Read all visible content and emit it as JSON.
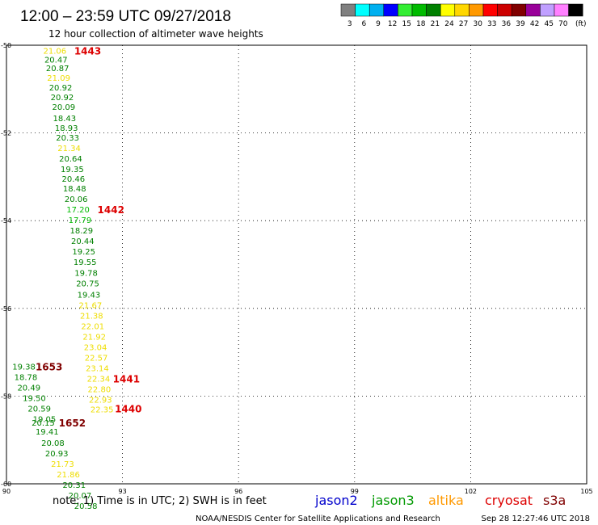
{
  "header": {
    "title": "12:00 – 23:59 UTC 09/27/2018",
    "subtitle": "12 hour collection of altimeter wave heights"
  },
  "colorbar": {
    "bins": [
      {
        "label": "3",
        "color": "#808080"
      },
      {
        "label": "6",
        "color": "#00ffff"
      },
      {
        "label": "9",
        "color": "#00b0f0"
      },
      {
        "label": "12",
        "color": "#0000ff"
      },
      {
        "label": "15",
        "color": "#33ee33"
      },
      {
        "label": "18",
        "color": "#00bb00"
      },
      {
        "label": "21",
        "color": "#008000"
      },
      {
        "label": "24",
        "color": "#ffff00"
      },
      {
        "label": "27",
        "color": "#ffd700"
      },
      {
        "label": "30",
        "color": "#ff9900"
      },
      {
        "label": "33",
        "color": "#ff0000"
      },
      {
        "label": "36",
        "color": "#cc0000"
      },
      {
        "label": "39",
        "color": "#800000"
      },
      {
        "label": "42",
        "color": "#990099"
      },
      {
        "label": "45",
        "color": "#c0a0ff"
      },
      {
        "label": "70",
        "color": "#ff80ff"
      },
      {
        "label": "",
        "color": "#000000"
      }
    ],
    "unit": "(ft)"
  },
  "chart_data": {
    "type": "scatter",
    "xlim": [
      90,
      105
    ],
    "ylim": [
      -60,
      -50
    ],
    "xticks": [
      "90",
      "93",
      "96",
      "99",
      "102",
      "105"
    ],
    "yticks": [
      "-50",
      "-52",
      "-54",
      "-56",
      "-58",
      "-60"
    ],
    "grid": true,
    "color_scale": {
      "thresholds": [
        3,
        6,
        9,
        12,
        15,
        18,
        21,
        24,
        27,
        30,
        33,
        36,
        39,
        42,
        45,
        70
      ]
    },
    "points": [
      {
        "x": 91.25,
        "y": -50.12,
        "v": 21.06
      },
      {
        "x": 91.28,
        "y": -50.32,
        "v": 20.47
      },
      {
        "x": 91.32,
        "y": -50.52,
        "v": 20.87
      },
      {
        "x": 91.35,
        "y": -50.74,
        "v": 21.09
      },
      {
        "x": 91.4,
        "y": -50.96,
        "v": 20.92
      },
      {
        "x": 91.44,
        "y": -51.18,
        "v": 20.92
      },
      {
        "x": 91.48,
        "y": -51.4,
        "v": 20.09
      },
      {
        "x": 91.5,
        "y": -51.66,
        "v": 18.43
      },
      {
        "x": 91.55,
        "y": -51.88,
        "v": 18.93
      },
      {
        "x": 91.58,
        "y": -52.1,
        "v": 20.33
      },
      {
        "x": 91.62,
        "y": -52.34,
        "v": 21.34
      },
      {
        "x": 91.66,
        "y": -52.58,
        "v": 20.64
      },
      {
        "x": 91.7,
        "y": -52.82,
        "v": 19.35
      },
      {
        "x": 91.73,
        "y": -53.04,
        "v": 20.46
      },
      {
        "x": 91.76,
        "y": -53.26,
        "v": 18.48
      },
      {
        "x": 91.8,
        "y": -53.5,
        "v": 20.06
      },
      {
        "x": 91.85,
        "y": -53.74,
        "v": 17.2
      },
      {
        "x": 91.9,
        "y": -53.98,
        "v": 17.79
      },
      {
        "x": 91.94,
        "y": -54.22,
        "v": 18.29
      },
      {
        "x": 91.97,
        "y": -54.46,
        "v": 20.44
      },
      {
        "x": 92.0,
        "y": -54.7,
        "v": 19.25
      },
      {
        "x": 92.03,
        "y": -54.94,
        "v": 19.55
      },
      {
        "x": 92.06,
        "y": -55.18,
        "v": 19.78
      },
      {
        "x": 92.1,
        "y": -55.42,
        "v": 20.75
      },
      {
        "x": 92.13,
        "y": -55.68,
        "v": 19.43
      },
      {
        "x": 92.17,
        "y": -55.92,
        "v": 21.67
      },
      {
        "x": 92.2,
        "y": -56.16,
        "v": 21.38
      },
      {
        "x": 92.23,
        "y": -56.4,
        "v": 22.01
      },
      {
        "x": 92.27,
        "y": -56.64,
        "v": 21.92
      },
      {
        "x": 92.3,
        "y": -56.88,
        "v": 23.04
      },
      {
        "x": 92.32,
        "y": -57.12,
        "v": 22.57
      },
      {
        "x": 92.35,
        "y": -57.36,
        "v": 23.14
      },
      {
        "x": 92.38,
        "y": -57.6,
        "v": 22.34
      },
      {
        "x": 92.4,
        "y": -57.84,
        "v": 22.8
      },
      {
        "x": 92.43,
        "y": -58.08,
        "v": 22.93
      },
      {
        "x": 92.47,
        "y": -58.3,
        "v": 22.35
      },
      {
        "x": 90.45,
        "y": -57.32,
        "v": 19.38
      },
      {
        "x": 90.5,
        "y": -57.56,
        "v": 18.78
      },
      {
        "x": 90.58,
        "y": -57.8,
        "v": 20.49
      },
      {
        "x": 90.72,
        "y": -58.04,
        "v": 19.5
      },
      {
        "x": 90.85,
        "y": -58.28,
        "v": 20.59
      },
      {
        "x": 90.98,
        "y": -58.52,
        "v": 19.05
      },
      {
        "x": 90.95,
        "y": -58.6,
        "v": 20.15
      },
      {
        "x": 91.05,
        "y": -58.8,
        "v": 19.41
      },
      {
        "x": 91.2,
        "y": -59.06,
        "v": 20.08
      },
      {
        "x": 91.3,
        "y": -59.3,
        "v": 20.93
      },
      {
        "x": 91.45,
        "y": -59.54,
        "v": 21.73
      },
      {
        "x": 91.6,
        "y": -59.78,
        "v": 21.86
      },
      {
        "x": 91.75,
        "y": -60.02,
        "v": 20.31
      },
      {
        "x": 91.9,
        "y": -60.26,
        "v": 20.07
      },
      {
        "x": 92.05,
        "y": -60.5,
        "v": 20.58
      }
    ],
    "pass_labels": [
      {
        "x": 92.1,
        "y": -50.12,
        "text": "1443",
        "color": "#dd0000"
      },
      {
        "x": 92.7,
        "y": -53.74,
        "text": "1442",
        "color": "#dd0000"
      },
      {
        "x": 93.1,
        "y": -57.6,
        "text": "1441",
        "color": "#dd0000"
      },
      {
        "x": 93.15,
        "y": -58.28,
        "text": "1440",
        "color": "#dd0000"
      },
      {
        "x": 91.1,
        "y": -57.32,
        "text": "1653",
        "color": "#800000"
      },
      {
        "x": 91.7,
        "y": -58.6,
        "text": "1652",
        "color": "#800000"
      }
    ]
  },
  "footer": {
    "note": "note: 1) Time is in UTC; 2) SWH is in feet",
    "legend": [
      {
        "text": "jason2",
        "color": "#0000cc"
      },
      {
        "text": "jason3",
        "color": "#009900"
      },
      {
        "text": "altika",
        "color": "#ff9900"
      },
      {
        "text": "cryosat",
        "color": "#dd0000"
      },
      {
        "text": "s3a",
        "color": "#800000"
      }
    ],
    "credit": "NOAA/NESDIS Center for Satellite Applications and Research",
    "timestamp": "Sep 28 12:27:46 UTC 2018"
  }
}
